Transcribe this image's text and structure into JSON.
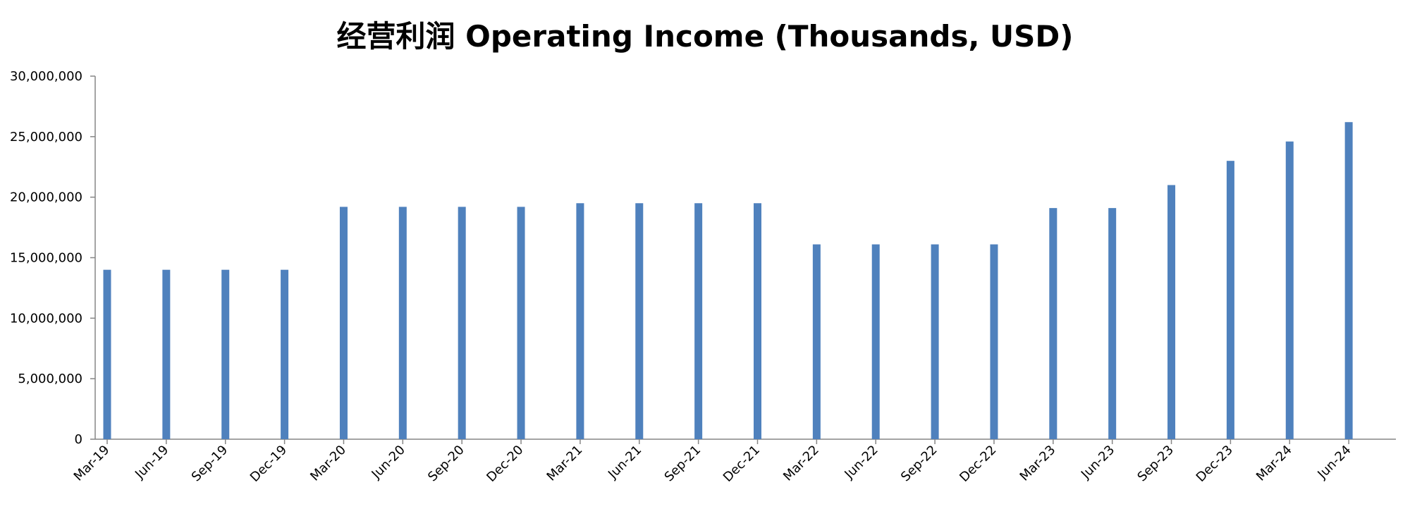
{
  "chart_data": {
    "type": "bar",
    "title": "经营利润 Operating Income (Thousands, USD)",
    "xlabel": "",
    "ylabel": "",
    "categories": [
      "Mar-19",
      "Jun-19",
      "Sep-19",
      "Dec-19",
      "Mar-20",
      "Jun-20",
      "Sep-20",
      "Dec-20",
      "Mar-21",
      "Jun-21",
      "Sep-21",
      "Dec-21",
      "Mar-22",
      "Jun-22",
      "Sep-22",
      "Dec-22",
      "Mar-23",
      "Jun-23",
      "Sep-23",
      "Dec-23",
      "Mar-24",
      "Jun-24"
    ],
    "values": [
      14000000,
      14000000,
      14000000,
      14000000,
      19200000,
      19200000,
      19200000,
      19200000,
      19500000,
      19500000,
      19500000,
      19500000,
      16100000,
      16100000,
      16100000,
      16100000,
      19100000,
      19100000,
      21000000,
      23000000,
      24600000,
      26200000
    ],
    "ylim": [
      0,
      30000000
    ],
    "yticks": [
      0,
      5000000,
      10000000,
      15000000,
      20000000,
      25000000,
      30000000
    ],
    "ytick_labels": [
      "0",
      "5,000,000",
      "10,000,000",
      "15,000,000",
      "20,000,000",
      "25,000,000",
      "30,000,000"
    ],
    "grid": false,
    "legend": "none",
    "bar_color": "#4F81BD",
    "axis_color": "#868686"
  }
}
